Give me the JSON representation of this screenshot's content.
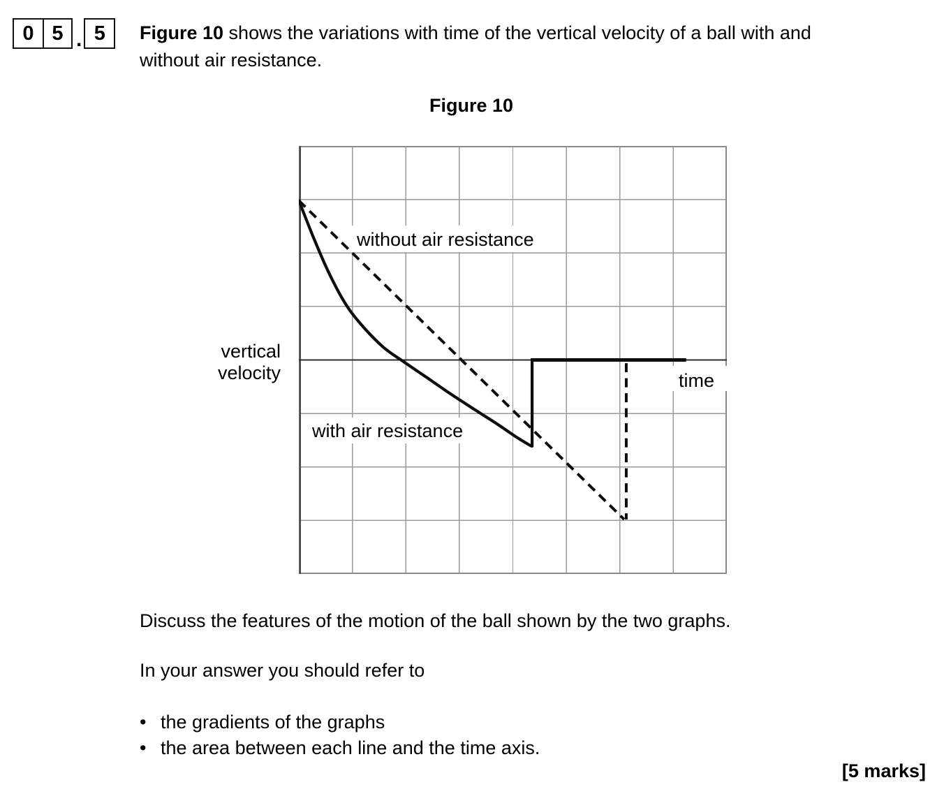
{
  "question_number": {
    "digits": [
      "0",
      "5",
      "5"
    ],
    "separator": "."
  },
  "intro": {
    "bold": "Figure 10",
    "line1_rest": " shows the variations with time of the vertical velocity of a ball with and",
    "line2": "without air resistance."
  },
  "figure": {
    "caption": "Figure 10",
    "labels": {
      "without": "without air resistance",
      "with": "with air resistance",
      "time": "time",
      "y1": "vertical",
      "y2": "velocity"
    }
  },
  "body": {
    "discuss": "Discuss the features of the motion of the ball shown by the two graphs.",
    "refer": "In your answer you should refer to",
    "bullets": [
      "the gradients of the graphs",
      "the area between each line and the time axis."
    ],
    "marks": "[5 marks]"
  },
  "chart_data": {
    "type": "line",
    "title": "Figure 10",
    "xlabel": "time",
    "ylabel": "vertical velocity",
    "note_units": "qualitative sketch; values in grid-cell units, v=0 at time axis",
    "grid": {
      "cols": 8,
      "rows": 8
    },
    "axis_v0_row": 4,
    "colors": {
      "ink": "#0d0d0d",
      "grid": "#9a9a9a",
      "border": "#8a8a8a",
      "axis": "#2d2d2d"
    },
    "series": [
      {
        "name": "without air resistance",
        "style": "dashed",
        "points": [
          [
            0,
            2.98
          ],
          [
            6.08,
            -2.98
          ]
        ],
        "vertical_marker": {
          "x": 6.12,
          "v_from": -0.06,
          "v_to": -2.98
        }
      },
      {
        "name": "with air resistance",
        "style": "solid",
        "points": [
          [
            0,
            2.98
          ],
          [
            0.29,
            2.25
          ],
          [
            0.57,
            1.61
          ],
          [
            0.89,
            1.02
          ],
          [
            1.23,
            0.59
          ],
          [
            1.59,
            0.23
          ],
          [
            1.94,
            -0.02
          ],
          [
            2.38,
            -0.32
          ],
          [
            2.83,
            -0.63
          ],
          [
            3.29,
            -0.93
          ],
          [
            3.68,
            -1.18
          ],
          [
            4.05,
            -1.43
          ],
          [
            4.31,
            -1.59
          ],
          [
            4.36,
            -1.61
          ]
        ],
        "bounce_jump": {
          "x": 4.36,
          "v_from": -1.61,
          "v_to": 0
        },
        "after_bounce": {
          "x_from": 4.36,
          "x_to": 7.24,
          "v": 0
        }
      }
    ]
  }
}
